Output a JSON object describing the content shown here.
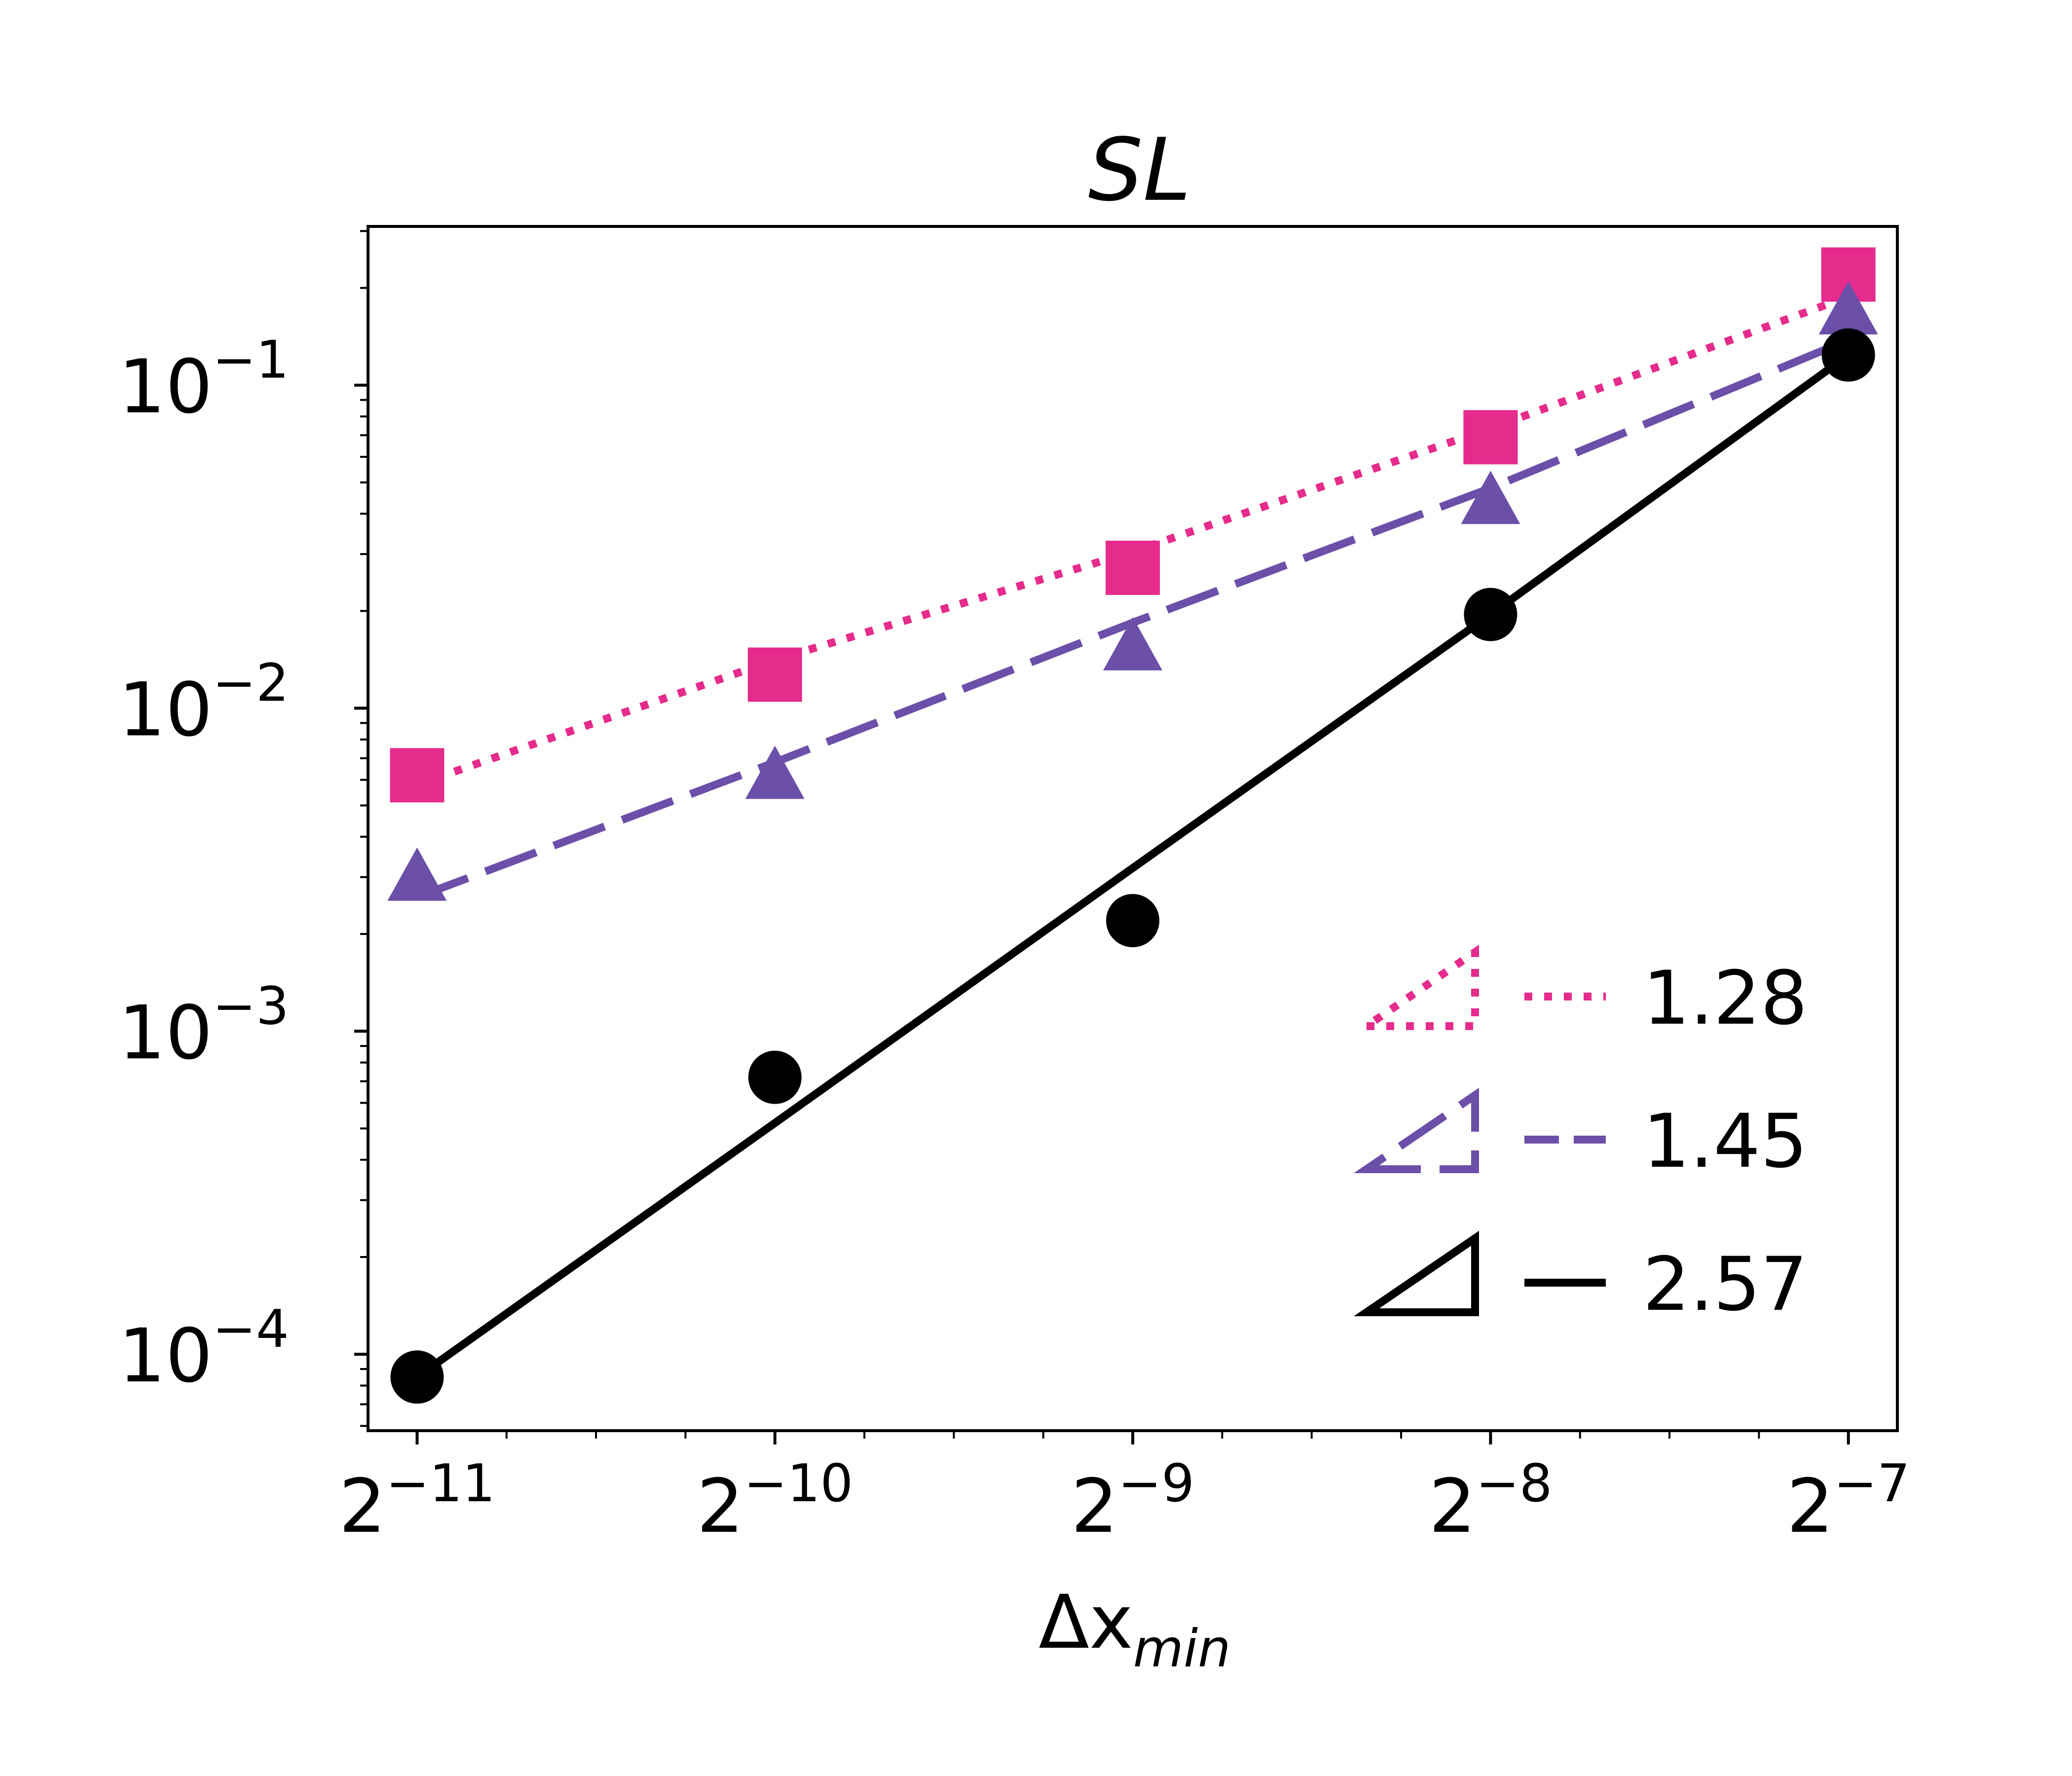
{
  "chart_data": {
    "type": "line",
    "title": "SL",
    "xlabel": {
      "main": "Δx",
      "sub": "min"
    },
    "ylabel": "",
    "xscale": "log2",
    "yscale": "log10",
    "x_exponents": [
      -11,
      -10,
      -9,
      -8,
      -7
    ],
    "x": [
      0.00048828125,
      0.0009765625,
      0.001953125,
      0.00390625,
      0.0078125
    ],
    "xlim": [
      0.000444,
      0.00859
    ],
    "ylim": [
      5.8e-05,
      0.31
    ],
    "x_ticks": [
      {
        "base": "2",
        "exp": "−11"
      },
      {
        "base": "2",
        "exp": "−10"
      },
      {
        "base": "2",
        "exp": "−9"
      },
      {
        "base": "2",
        "exp": "−8"
      },
      {
        "base": "2",
        "exp": "−7"
      }
    ],
    "y_ticks": [
      {
        "base": "10",
        "exp": "−1",
        "value": 0.1
      },
      {
        "base": "10",
        "exp": "−2",
        "value": 0.01
      },
      {
        "base": "10",
        "exp": "−3",
        "value": 0.001
      },
      {
        "base": "10",
        "exp": "−4",
        "value": 0.0001
      }
    ],
    "series": [
      {
        "name": "square",
        "marker": "square",
        "line": "dotted",
        "color": "#e52b8c",
        "values": [
          0.0062,
          0.0127,
          0.0272,
          0.069,
          0.22
        ],
        "fit": [
          0.0058,
          0.0141,
          0.0305,
          0.0735,
          0.188
        ],
        "slope_label": "1.28"
      },
      {
        "name": "triangle",
        "marker": "triangle",
        "line": "dashed",
        "color": "#6c4fa8",
        "values": [
          0.003,
          0.0062,
          0.0155,
          0.044,
          0.17
        ],
        "fit": [
          0.0026,
          0.0068,
          0.0184,
          0.048,
          0.138
        ],
        "slope_label": "1.45"
      },
      {
        "name": "circle",
        "marker": "circle",
        "line": "solid",
        "color": "#000000",
        "values": [
          8.5e-05,
          0.00072,
          0.0022,
          0.0195,
          0.124
        ],
        "fit": [
          8.5e-05,
          0.00052,
          0.0032,
          0.0195,
          0.124
        ],
        "slope_label": "2.57"
      }
    ],
    "legend": {
      "position": "bottom-right"
    }
  }
}
